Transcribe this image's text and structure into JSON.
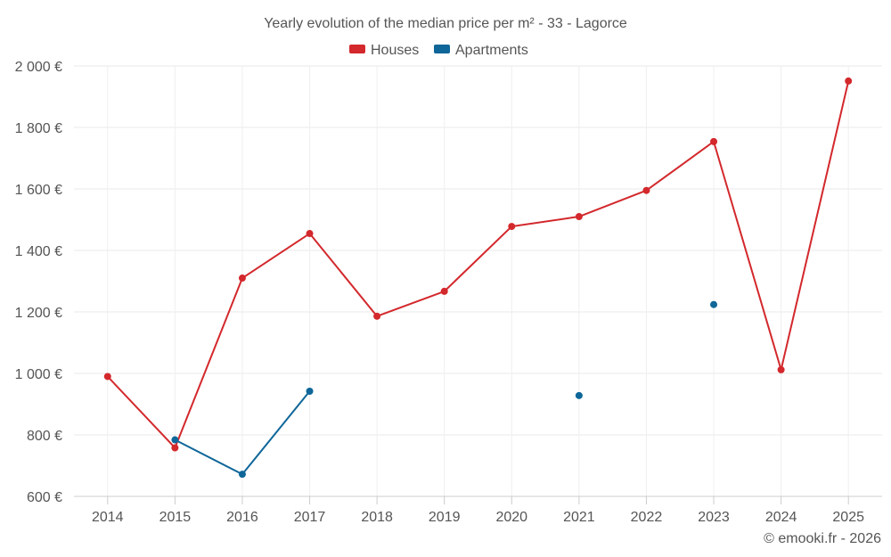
{
  "chart_data": {
    "type": "line",
    "title": "Yearly evolution of the median price per m² - 33 - Lagorce",
    "categories": [
      "2014",
      "2015",
      "2016",
      "2017",
      "2018",
      "2019",
      "2020",
      "2021",
      "2022",
      "2023",
      "2024",
      "2025"
    ],
    "ylim": [
      600,
      2000
    ],
    "yticks": [
      600,
      800,
      1000,
      1200,
      1400,
      1600,
      1800,
      2000
    ],
    "ytick_labels": [
      "600 €",
      "800 €",
      "1 000 €",
      "1 200 €",
      "1 400 €",
      "1 600 €",
      "1 800 €",
      "2 000 €"
    ],
    "grid": true,
    "legend_position": "top-center",
    "series": [
      {
        "name": "Houses",
        "color": "#d3282c",
        "values": [
          990,
          758,
          1310,
          1455,
          1186,
          1267,
          1478,
          1510,
          1595,
          1754,
          1012,
          1951
        ]
      },
      {
        "name": "Apartments",
        "color": "#0e6699",
        "values": [
          null,
          784,
          672,
          942,
          null,
          null,
          null,
          928,
          null,
          1224,
          null,
          null
        ]
      }
    ],
    "credit": "© emooki.fr - 2026"
  }
}
